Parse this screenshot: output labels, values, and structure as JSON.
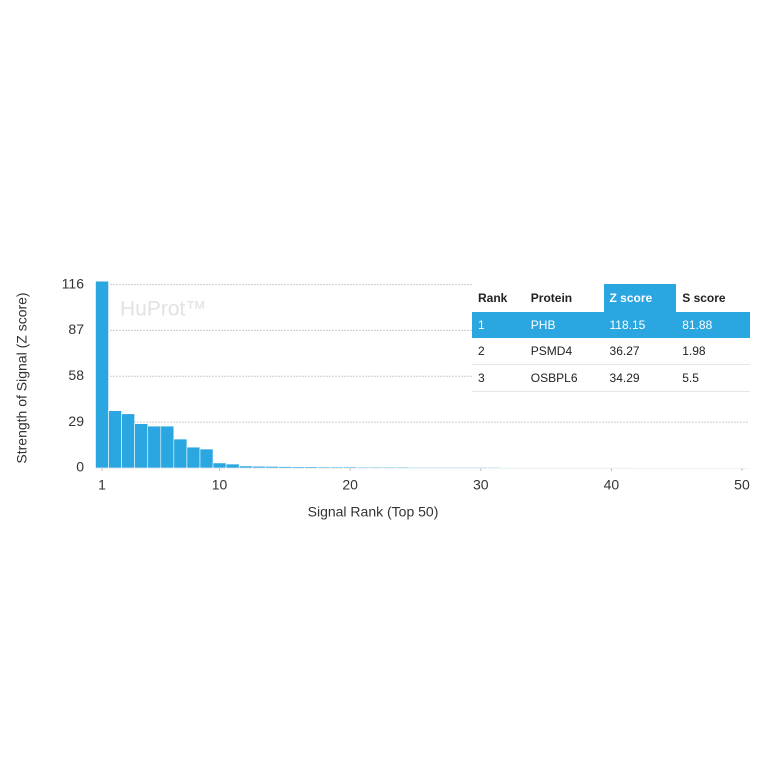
{
  "chart_data": {
    "type": "bar",
    "watermark": "HuProt™",
    "xlabel": "Signal Rank (Top 50)",
    "ylabel": "Strength of Signal (Z score)",
    "x": [
      1,
      2,
      3,
      4,
      5,
      6,
      7,
      8,
      9,
      10,
      11,
      12,
      13,
      14,
      15,
      16,
      17,
      18,
      19,
      20,
      21,
      22,
      23,
      24,
      25,
      26,
      27,
      28,
      29,
      30,
      31,
      32,
      33,
      34,
      35,
      36,
      37,
      38,
      39,
      40,
      41,
      42,
      43,
      44,
      45,
      46,
      47,
      48,
      49,
      50
    ],
    "values": [
      118.15,
      36.27,
      34.29,
      28,
      26.5,
      26.5,
      18.3,
      13.2,
      12,
      3.2,
      2.5,
      1.3,
      1.1,
      1.0,
      0.9,
      0.8,
      0.8,
      0.7,
      0.7,
      0.7,
      0.6,
      0.6,
      0.6,
      0.6,
      0.5,
      0.5,
      0.5,
      0.5,
      0.5,
      0.5,
      0.5,
      0.4,
      0.4,
      0.4,
      0.4,
      0.4,
      0.4,
      0.4,
      0.4,
      0.4,
      0.4,
      0.3,
      0.3,
      0.3,
      0.3,
      0.3,
      0.3,
      0.3,
      0.3,
      0.3
    ],
    "color": "#2aa6e0",
    "xlim": [
      0.5,
      50.5
    ],
    "xticks": [
      1,
      10,
      20,
      30,
      40,
      50
    ],
    "ylim": [
      0,
      117
    ],
    "yticks": [
      0,
      29,
      58,
      87,
      116
    ],
    "grid": true
  },
  "table": {
    "columns": [
      "Rank",
      "Protein",
      "Z score",
      "S score"
    ],
    "rows": [
      [
        "1",
        "PHB",
        "118.15",
        "81.88"
      ],
      [
        "2",
        "PSMD4",
        "36.27",
        "1.98"
      ],
      [
        "3",
        "OSBPL6",
        "34.29",
        "5.5"
      ]
    ]
  }
}
